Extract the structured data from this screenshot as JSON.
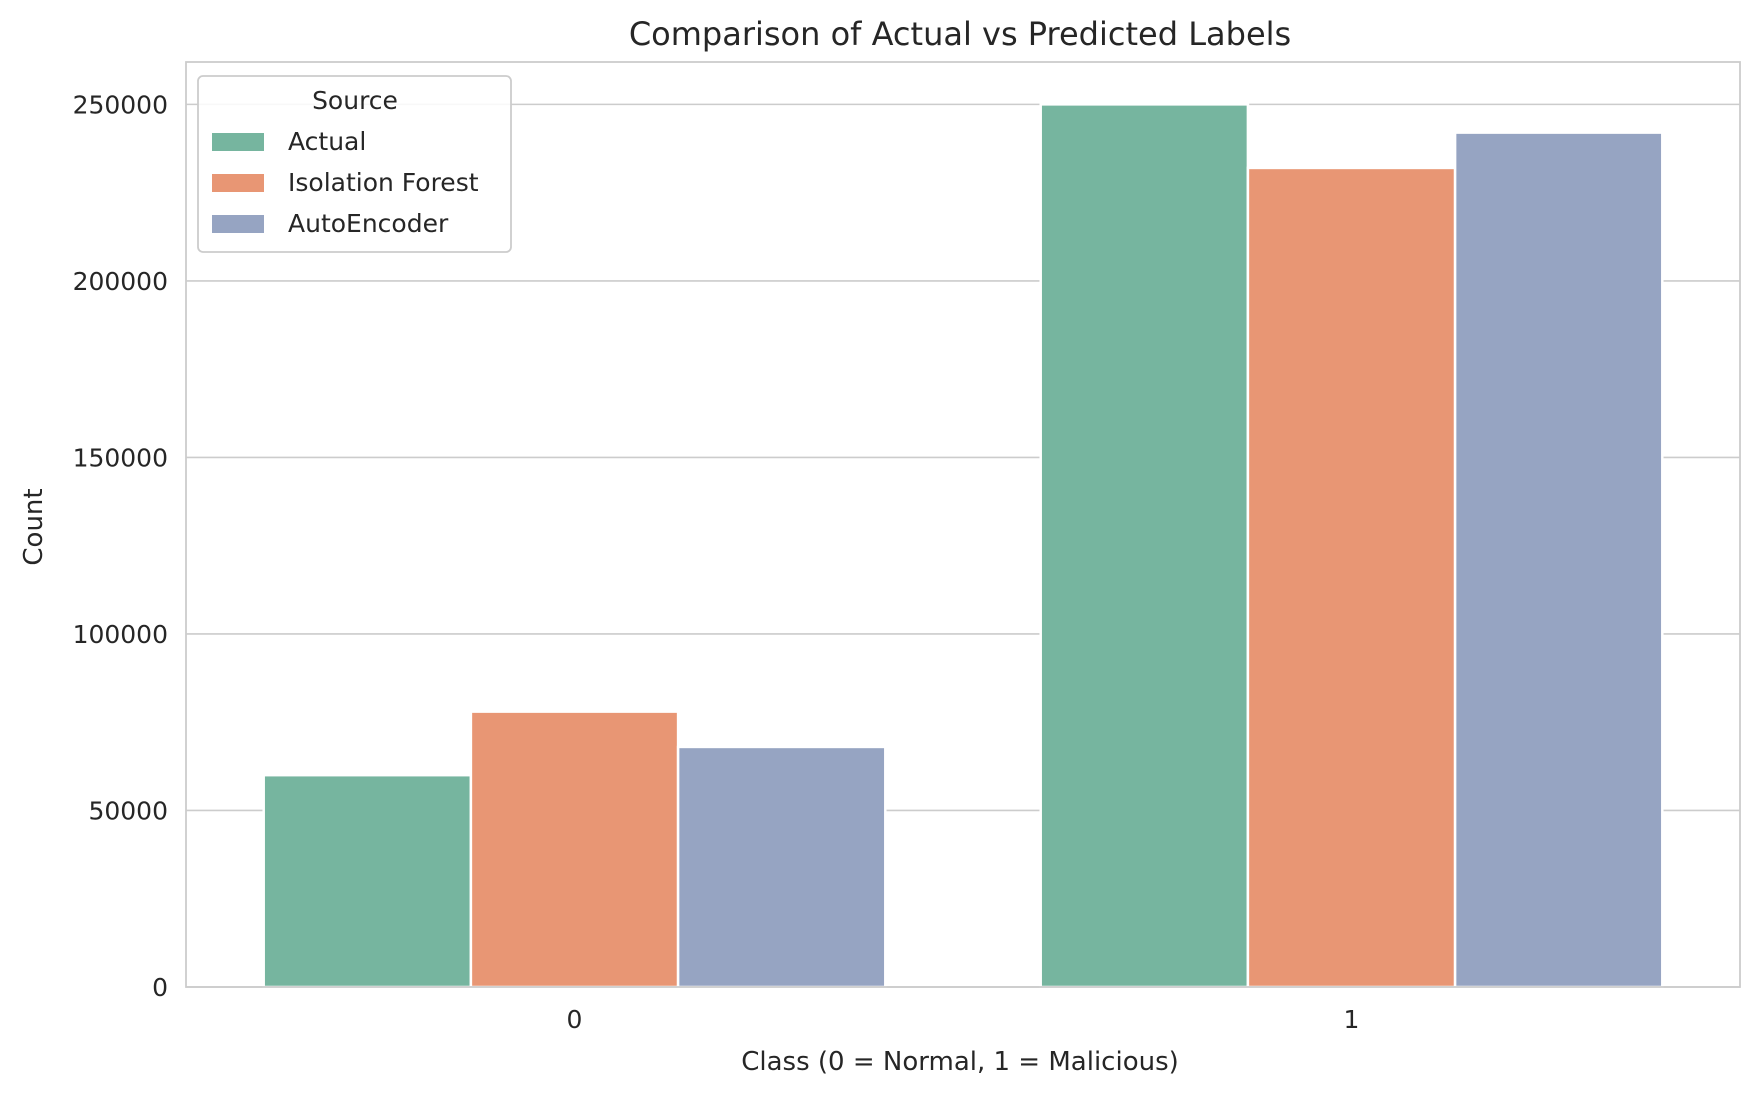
{
  "chart_data": {
    "type": "bar",
    "title": "Comparison of Actual vs Predicted Labels",
    "xlabel": "Class (0 = Normal, 1 = Malicious)",
    "ylabel": "Count",
    "categories": [
      "0",
      "1"
    ],
    "ylim": [
      0,
      262000
    ],
    "yticks": [
      0,
      50000,
      100000,
      150000,
      200000,
      250000
    ],
    "grid": true,
    "legend": {
      "title": "Source",
      "placement": "top-left"
    },
    "series": [
      {
        "name": "Actual",
        "color": "#76b59f",
        "values": [
          60000,
          250000
        ]
      },
      {
        "name": "Isolation Forest",
        "color": "#e89674",
        "values": [
          78000,
          232000
        ]
      },
      {
        "name": "AutoEncoder",
        "color": "#96a4c2",
        "values": [
          68000,
          242000
        ]
      }
    ]
  }
}
